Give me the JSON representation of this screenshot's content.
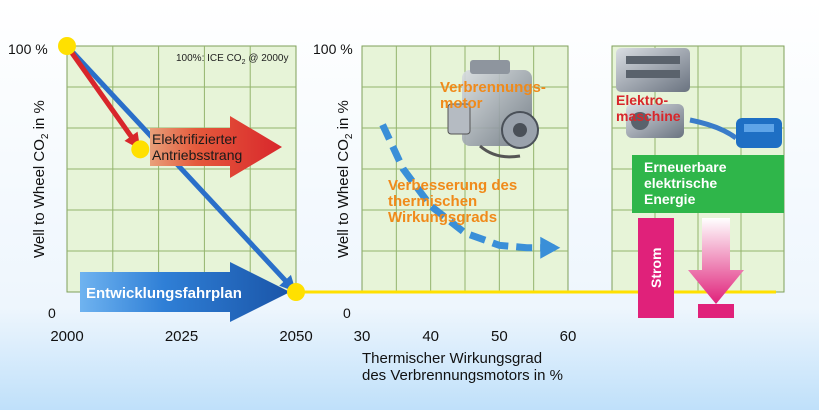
{
  "left_panel": {
    "ylabel_main": "Well to Wheel CO",
    "ylabel_sub": "2",
    "ylabel_tail": " in %",
    "y_top_label": "100 %",
    "y_bottom_label": "0",
    "note_main": "100%: ICE CO",
    "note_sub": "2",
    "note_tail": " @ 2000y",
    "arrow_electrified_line1": "Elektrifizierter",
    "arrow_electrified_line2": "Antriebsstrang",
    "arrow_roadmap": "Entwicklungsfahrplan"
  },
  "middle_panel": {
    "ylabel_main": "Well to Wheel CO",
    "ylabel_sub": "2",
    "ylabel_tail": " in %",
    "y_top_label": "100 %",
    "y_bottom_label": "0",
    "engine_label_line1": "Verbrennungs-",
    "engine_label_line2": "motor",
    "improvement_line1": "Verbesserung des",
    "improvement_line2": "thermischen",
    "improvement_line3": "Wirkungsgrads",
    "xlabel_line1": "Thermischer Wirkungsgrad",
    "xlabel_line2": "des Verbrennungsmotors in  %"
  },
  "right_panel": {
    "machine_label_line1": "Elektro-",
    "machine_label_line2": "maschine",
    "green_box_line1": "Erneuerbare",
    "green_box_line2": "elektrische",
    "green_box_line3": "Energie",
    "strom_label": "Strom"
  },
  "chart_data": [
    {
      "type": "line",
      "x_ticks": [
        "2000",
        "2025",
        "2050"
      ],
      "xlim": [
        2000,
        2050
      ],
      "ylim": [
        0,
        100
      ],
      "series": [
        {
          "x": [
            2000,
            2050
          ],
          "y": [
            100,
            0
          ],
          "color": "#2a6fc9"
        },
        {
          "x": [
            2000,
            2016
          ],
          "y": [
            100,
            58
          ],
          "color": "#d8262b"
        }
      ],
      "markers": [
        {
          "x": 2000,
          "y": 100
        },
        {
          "x": 2016,
          "y": 58
        },
        {
          "x": 2050,
          "y": 0
        }
      ],
      "grid": true
    },
    {
      "type": "line",
      "x_ticks": [
        "30",
        "40",
        "50",
        "60"
      ],
      "xlim": [
        30,
        60
      ],
      "ylim": [
        0,
        100
      ],
      "series": [
        {
          "x": [
            33,
            36,
            40,
            45,
            50,
            54,
            58
          ],
          "y": [
            68,
            50,
            35,
            24,
            19,
            18,
            18
          ],
          "color": "#3a8fd8",
          "style": "dashed"
        }
      ],
      "grid": true
    }
  ],
  "colors": {
    "background_top": "#ffffff",
    "background_bottom": "#cfe6fb",
    "grid_fill": "#e7f4d8",
    "grid_line": "#7fa05a",
    "yellow_line": "#ffe000",
    "blue_arrow": "#1d5fb0",
    "red_arrow": "#d8262b",
    "orange_text": "#f08a1a",
    "green_box": "#2fb64a",
    "magenta_bar": "#e0217a"
  }
}
